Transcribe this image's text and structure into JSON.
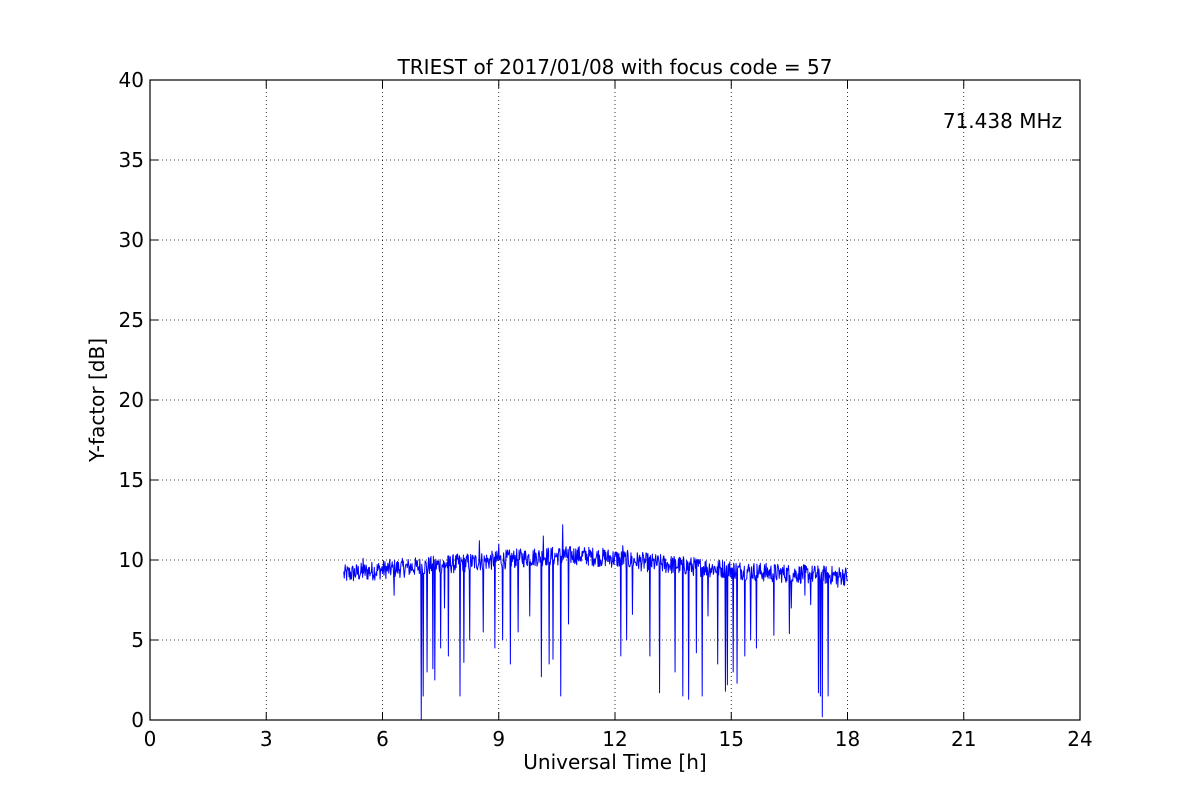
{
  "chart_data": {
    "type": "line",
    "title": "TRIEST of 2017/01/08 with focus code = 57",
    "xlabel": "Universal Time [h]",
    "ylabel": "Y-factor [dB]",
    "xlim": [
      0,
      24
    ],
    "ylim": [
      0,
      40
    ],
    "xticks": [
      0,
      3,
      6,
      9,
      12,
      15,
      18,
      21,
      24
    ],
    "yticks": [
      0,
      5,
      10,
      15,
      20,
      25,
      30,
      35,
      40
    ],
    "grid": true,
    "annotation": {
      "text": "71.438 MHz",
      "color": "#0000ff",
      "placement": "top-right"
    },
    "series": [
      {
        "color": "#0000ff",
        "x_start": 5.0,
        "x_end": 18.0,
        "baseline": [
          [
            5.0,
            9.1
          ],
          [
            6.0,
            9.4
          ],
          [
            7.0,
            9.6
          ],
          [
            8.0,
            9.8
          ],
          [
            9.0,
            10.0
          ],
          [
            10.0,
            10.2
          ],
          [
            11.0,
            10.3
          ],
          [
            12.0,
            10.1
          ],
          [
            13.0,
            9.8
          ],
          [
            14.0,
            9.6
          ],
          [
            15.0,
            9.4
          ],
          [
            16.0,
            9.2
          ],
          [
            17.0,
            9.1
          ],
          [
            18.0,
            9.0
          ]
        ],
        "dips": [
          [
            6.3,
            7.8
          ],
          [
            7.0,
            0.0
          ],
          [
            7.05,
            1.5
          ],
          [
            7.15,
            3.0
          ],
          [
            7.3,
            3.2
          ],
          [
            7.35,
            2.5
          ],
          [
            7.5,
            4.5
          ],
          [
            7.6,
            7.0
          ],
          [
            7.7,
            4.0
          ],
          [
            8.0,
            1.5
          ],
          [
            8.1,
            3.6
          ],
          [
            8.25,
            5.0
          ],
          [
            8.5,
            3.8
          ],
          [
            8.6,
            5.5
          ],
          [
            8.9,
            4.5
          ],
          [
            9.0,
            6.0
          ],
          [
            9.1,
            5.0
          ],
          [
            9.3,
            3.5
          ],
          [
            9.5,
            5.5
          ],
          [
            9.8,
            6.5
          ],
          [
            10.1,
            2.7
          ],
          [
            10.3,
            3.5
          ],
          [
            10.4,
            3.8
          ],
          [
            10.6,
            1.5
          ],
          [
            10.8,
            6.0
          ],
          [
            12.15,
            4.0
          ],
          [
            12.2,
            2.4
          ],
          [
            12.3,
            5.0
          ],
          [
            12.45,
            6.6
          ],
          [
            12.9,
            4.0
          ],
          [
            13.15,
            1.7
          ],
          [
            13.55,
            3.0
          ],
          [
            13.75,
            1.5
          ],
          [
            13.9,
            1.3
          ],
          [
            14.1,
            4.2
          ],
          [
            14.25,
            1.5
          ],
          [
            14.4,
            6.5
          ],
          [
            14.65,
            3.5
          ],
          [
            14.85,
            1.8
          ],
          [
            14.9,
            2.2
          ],
          [
            15.05,
            3.0
          ],
          [
            15.15,
            2.3
          ],
          [
            15.35,
            4.0
          ],
          [
            15.5,
            5.0
          ],
          [
            15.65,
            4.5
          ],
          [
            16.1,
            5.3
          ],
          [
            16.5,
            5.4
          ],
          [
            16.55,
            7.0
          ],
          [
            16.9,
            7.8
          ],
          [
            17.05,
            7.2
          ],
          [
            17.25,
            1.7
          ],
          [
            17.3,
            1.5
          ],
          [
            17.35,
            0.2
          ],
          [
            17.5,
            1.5
          ],
          [
            17.75,
            8.3
          ]
        ],
        "spikes": [
          [
            8.5,
            11.2
          ],
          [
            9.0,
            11.0
          ],
          [
            10.15,
            11.5
          ],
          [
            10.65,
            12.2
          ],
          [
            12.2,
            10.9
          ],
          [
            5.5,
            10.1
          ]
        ]
      }
    ]
  }
}
